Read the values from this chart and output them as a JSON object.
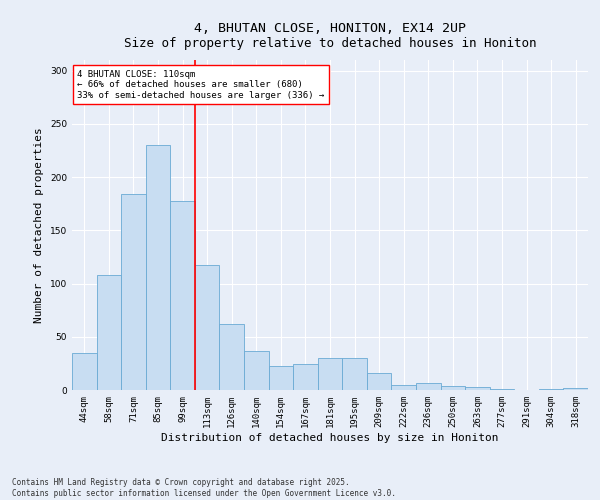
{
  "title": "4, BHUTAN CLOSE, HONITON, EX14 2UP",
  "subtitle": "Size of property relative to detached houses in Honiton",
  "xlabel": "Distribution of detached houses by size in Honiton",
  "ylabel": "Number of detached properties",
  "categories": [
    "44sqm",
    "58sqm",
    "71sqm",
    "85sqm",
    "99sqm",
    "113sqm",
    "126sqm",
    "140sqm",
    "154sqm",
    "167sqm",
    "181sqm",
    "195sqm",
    "209sqm",
    "222sqm",
    "236sqm",
    "250sqm",
    "263sqm",
    "277sqm",
    "291sqm",
    "304sqm",
    "318sqm"
  ],
  "values": [
    35,
    108,
    184,
    230,
    178,
    117,
    62,
    37,
    23,
    24,
    30,
    30,
    16,
    5,
    7,
    4,
    3,
    1,
    0,
    1,
    2
  ],
  "bar_color": "#c8ddf2",
  "bar_edge_color": "#6aaad4",
  "vline_x_index": 5,
  "vline_color": "red",
  "annotation_title": "4 BHUTAN CLOSE: 110sqm",
  "annotation_line1": "← 66% of detached houses are smaller (680)",
  "annotation_line2": "33% of semi-detached houses are larger (336) →",
  "ylim": [
    0,
    310
  ],
  "yticks": [
    0,
    50,
    100,
    150,
    200,
    250,
    300
  ],
  "footer_line1": "Contains HM Land Registry data © Crown copyright and database right 2025.",
  "footer_line2": "Contains public sector information licensed under the Open Government Licence v3.0.",
  "bg_color": "#e8eef8",
  "plot_bg_color": "#e8eef8",
  "grid_color": "white",
  "title_fontsize": 9.5,
  "axis_label_fontsize": 8,
  "tick_fontsize": 6.5,
  "annotation_fontsize": 6.5,
  "footer_fontsize": 5.5
}
